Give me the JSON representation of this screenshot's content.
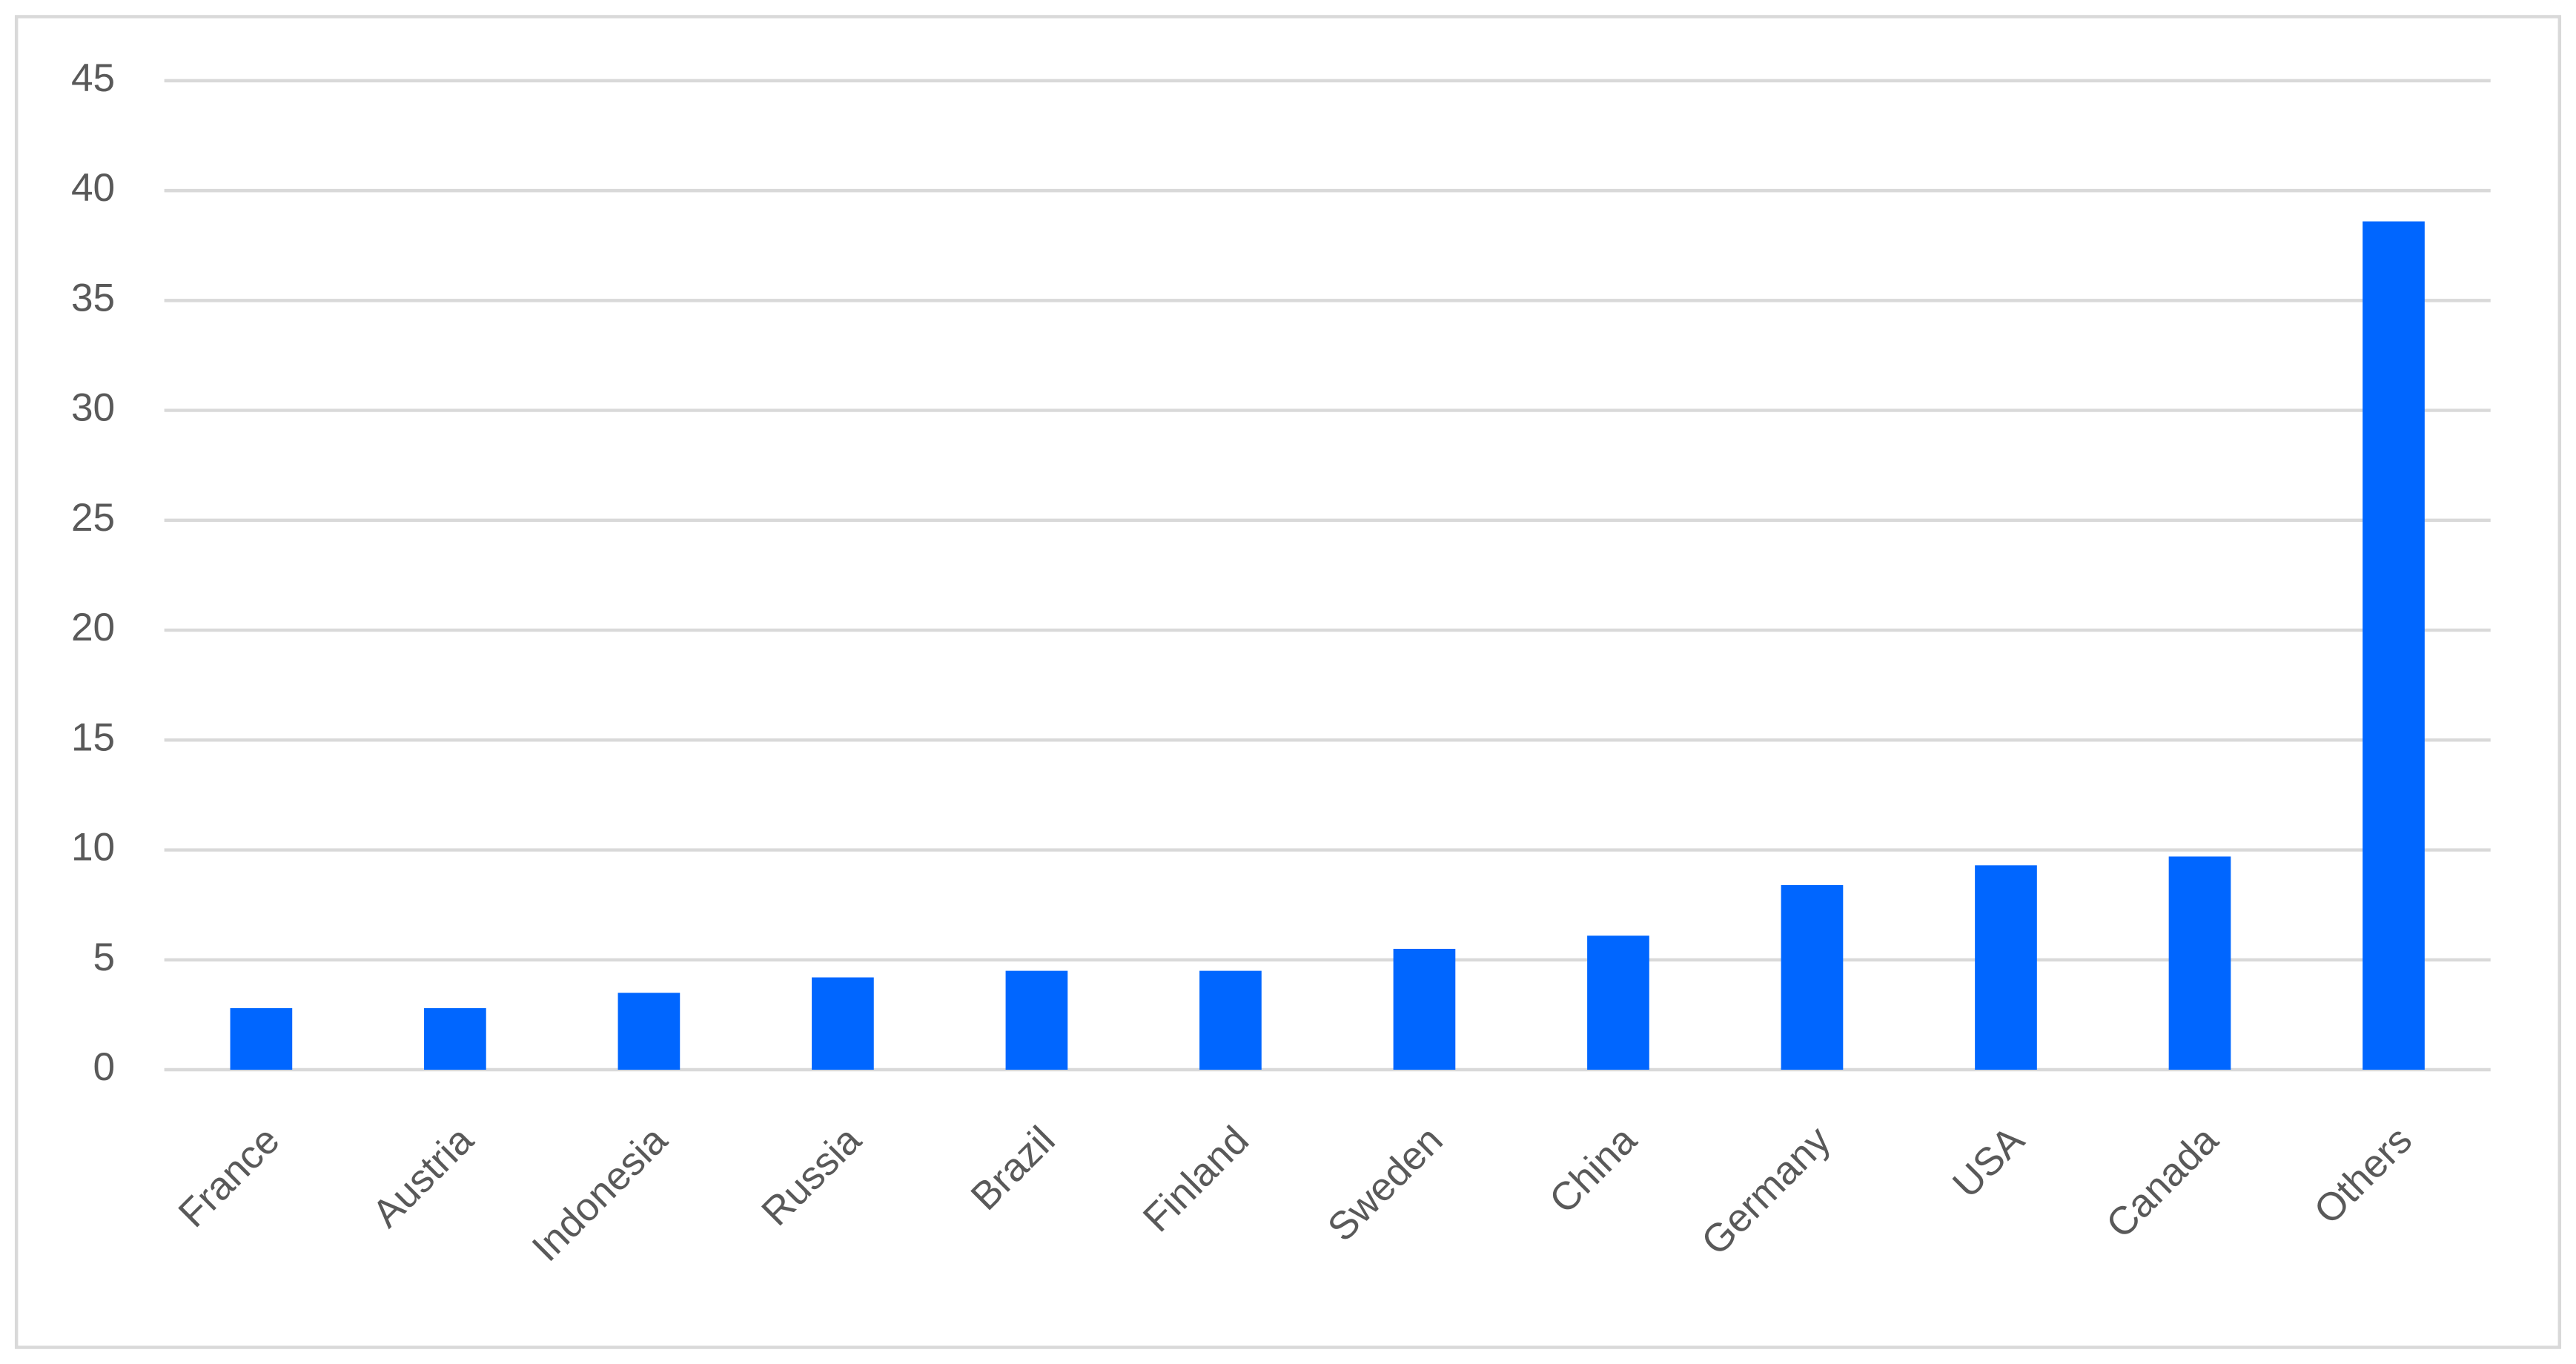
{
  "chart_data": {
    "type": "bar",
    "categories": [
      "France",
      "Austria",
      "Indonesia",
      "Russia",
      "Brazil",
      "Finland",
      "Sweden",
      "China",
      "Germany",
      "USA",
      "Canada",
      "Others"
    ],
    "values": [
      2.8,
      2.8,
      3.5,
      4.2,
      4.5,
      4.5,
      5.5,
      6.1,
      8.4,
      9.3,
      9.7,
      38.6
    ],
    "color": "#0066ff",
    "ylim": [
      0,
      45
    ],
    "yticks": [
      0,
      5,
      10,
      15,
      20,
      25,
      30,
      35,
      40,
      45
    ],
    "grid": true
  }
}
